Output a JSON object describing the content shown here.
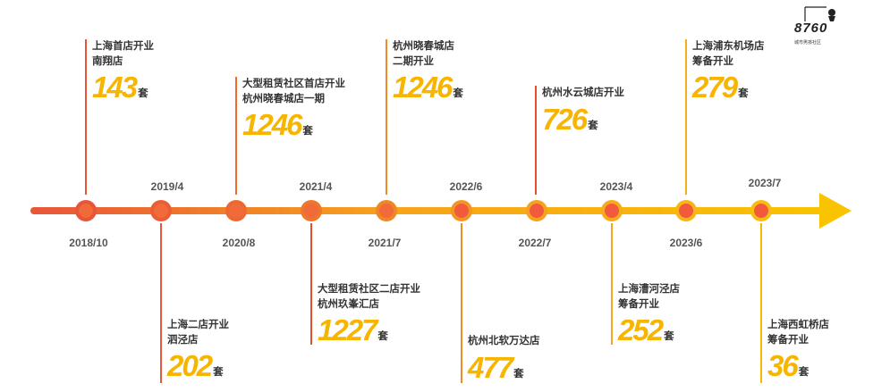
{
  "logo": {
    "text": "8760",
    "subtitle": "城市男孩社区"
  },
  "dates_top": [
    "2019/4",
    "2021/4",
    "2022/6",
    "2023/4",
    "2023/7"
  ],
  "dates_bottom": [
    "2018/10",
    "2020/8",
    "2021/7",
    "2022/7",
    "2023/6"
  ],
  "events_top": [
    {
      "line1": "上海首店开业",
      "line2": "南翔店",
      "count": "143",
      "unit": "套"
    },
    {
      "line1": "大型租赁社区首店开业",
      "line2": "杭州晓春城店一期",
      "count": "1246",
      "unit": "套"
    },
    {
      "line1": "杭州晓春城店",
      "line2": "二期开业",
      "count": "1246",
      "unit": "套"
    },
    {
      "line1": "杭州水云城店开业",
      "line2": "",
      "count": "726",
      "unit": "套"
    },
    {
      "line1": "上海浦东机场店",
      "line2": "筹备开业",
      "count": "279",
      "unit": "套"
    }
  ],
  "events_bottom": [
    {
      "line1": "上海二店开业",
      "line2": "泗泾店",
      "count": "202",
      "unit": "套"
    },
    {
      "line1": "大型租赁社区二店开业",
      "line2": "杭州玖峯汇店",
      "count": "1227",
      "unit": "套"
    },
    {
      "line1": "杭州北软万达店",
      "line2": "",
      "count": "477",
      "unit": "套"
    },
    {
      "line1": "上海漕河泾店",
      "line2": "筹备开业",
      "count": "252",
      "unit": "套"
    },
    {
      "line1": "上海西虹桥店",
      "line2": "筹备开业",
      "count": "36",
      "unit": "套"
    }
  ],
  "colors": {
    "line_start": "#e8553a",
    "line_end": "#f9c300",
    "count": "#f7b500",
    "vline_left": "#e4502e",
    "vline_right": "#f9b800"
  }
}
